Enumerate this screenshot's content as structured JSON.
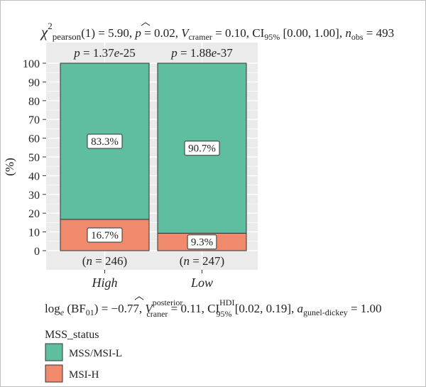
{
  "chart_data": {
    "type": "bar",
    "stacked": true,
    "percent": true,
    "categories": [
      "High",
      "Low"
    ],
    "series": [
      {
        "name": "MSI-H",
        "color": "#F08A6C",
        "values": [
          16.7,
          9.3
        ],
        "labels": [
          "16.7%",
          "9.3%"
        ]
      },
      {
        "name": "MSS/MSI-L",
        "color": "#5FBE9F",
        "values": [
          83.3,
          90.7
        ],
        "labels": [
          "83.3%",
          "90.7%"
        ]
      }
    ],
    "ylabel": "(%)",
    "ylim": [
      0,
      100
    ],
    "yticks": [
      0,
      10,
      20,
      30,
      40,
      50,
      60,
      70,
      80,
      90,
      100
    ],
    "p_labels": [
      "1.37e-25",
      "1.88e-37"
    ],
    "n_labels": [
      "246",
      "247"
    ],
    "grid": true,
    "legend_title": "MSS_status",
    "legend_position": "bottom-left",
    "title_stats": {
      "chi_df": "(1)",
      "chi_value": "5.90",
      "p_value": "0.02",
      "cramer_v": "0.10",
      "ci_level": "95%",
      "ci": "[0.00, 1.00]",
      "n_obs": "493"
    },
    "caption_stats": {
      "log_bf01": "−0.77",
      "v_posterior": "0.11",
      "ci_level": "95%",
      "ci": "[0.02, 0.19]",
      "a_gunel_dickey": "1.00"
    }
  },
  "colors": {
    "panel_bg": "#EBEBEB",
    "grid": "#FFFFFF",
    "bar_outline": "#333333",
    "text": "#222222"
  }
}
